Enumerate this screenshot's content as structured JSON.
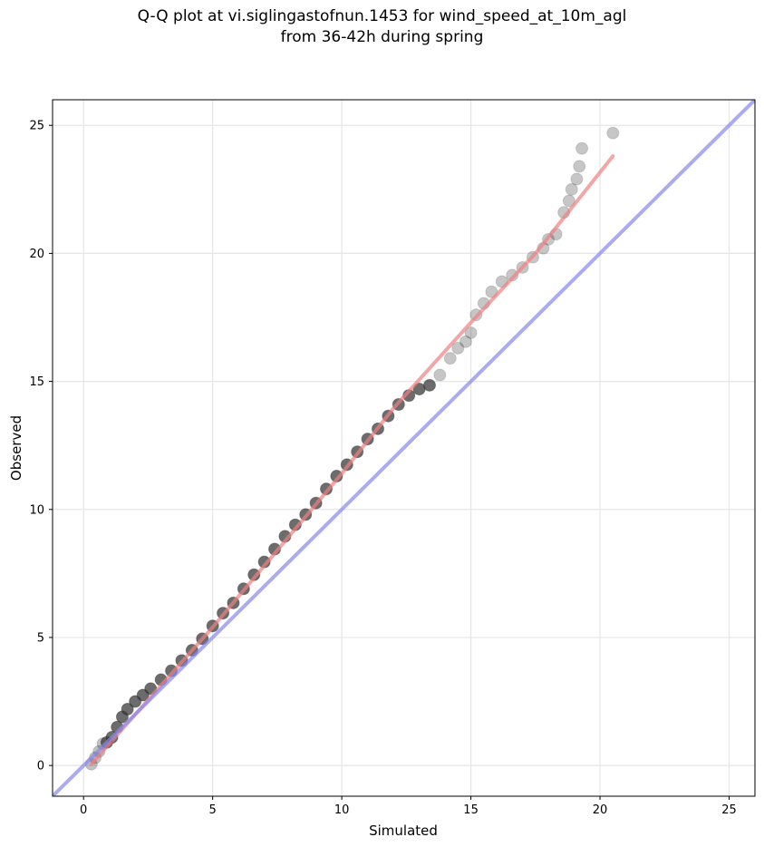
{
  "title_lines": [
    "Q-Q plot at vi.siglingastofnun.1453 for wind_speed_at_10m_agl",
    "from 36-42h during spring"
  ],
  "chart_data": {
    "type": "scatter",
    "title": "Q-Q plot at vi.siglingastofnun.1453 for wind_speed_at_10m_agl from 36-42h during spring",
    "xlabel": "Simulated",
    "ylabel": "Observed",
    "xlim": [
      -1.2,
      26
    ],
    "ylim": [
      -1.2,
      26
    ],
    "xticks": [
      0,
      5,
      10,
      15,
      20,
      25
    ],
    "yticks": [
      0,
      5,
      10,
      15,
      20,
      25
    ],
    "grid": true,
    "legend": "none",
    "series": [
      {
        "type": "scatter",
        "color": "#333333",
        "points": [
          [
            0.3,
            0.05
          ],
          [
            0.45,
            0.3
          ],
          [
            0.6,
            0.55
          ],
          [
            0.75,
            0.85
          ],
          [
            0.9,
            0.9
          ],
          [
            1.1,
            1.1
          ],
          [
            1.3,
            1.5
          ],
          [
            1.5,
            1.9
          ],
          [
            1.7,
            2.2
          ],
          [
            2.0,
            2.5
          ],
          [
            2.3,
            2.75
          ],
          [
            2.6,
            3.0
          ],
          [
            3.0,
            3.35
          ],
          [
            3.4,
            3.7
          ],
          [
            3.8,
            4.1
          ],
          [
            4.2,
            4.5
          ],
          [
            4.6,
            4.95
          ],
          [
            5.0,
            5.45
          ],
          [
            5.4,
            5.95
          ],
          [
            5.8,
            6.35
          ],
          [
            6.2,
            6.9
          ],
          [
            6.6,
            7.45
          ],
          [
            7.0,
            7.95
          ],
          [
            7.4,
            8.45
          ],
          [
            7.8,
            8.95
          ],
          [
            8.2,
            9.4
          ],
          [
            8.6,
            9.8
          ],
          [
            9.0,
            10.25
          ],
          [
            9.4,
            10.8
          ],
          [
            9.8,
            11.3
          ],
          [
            10.2,
            11.75
          ],
          [
            10.6,
            12.25
          ],
          [
            11.0,
            12.75
          ],
          [
            11.4,
            13.15
          ],
          [
            11.8,
            13.65
          ],
          [
            12.2,
            14.1
          ],
          [
            12.6,
            14.45
          ],
          [
            13.0,
            14.7
          ],
          [
            13.4,
            14.85
          ],
          [
            13.8,
            15.25
          ],
          [
            14.2,
            15.9
          ],
          [
            14.5,
            16.3
          ],
          [
            14.8,
            16.55
          ],
          [
            15.0,
            16.9
          ],
          [
            15.2,
            17.6
          ],
          [
            15.5,
            18.05
          ],
          [
            15.8,
            18.5
          ],
          [
            16.2,
            18.9
          ],
          [
            16.6,
            19.15
          ],
          [
            17.0,
            19.45
          ],
          [
            17.4,
            19.85
          ],
          [
            17.8,
            20.2
          ],
          [
            18.0,
            20.55
          ],
          [
            18.3,
            20.75
          ],
          [
            18.6,
            21.6
          ],
          [
            18.8,
            22.05
          ],
          [
            18.9,
            22.5
          ],
          [
            19.1,
            22.9
          ],
          [
            19.2,
            23.4
          ],
          [
            19.3,
            24.1
          ],
          [
            20.5,
            24.7
          ]
        ]
      },
      {
        "type": "line",
        "name": "",
        "color": "#f08080",
        "points": [
          [
            0.3,
            0.05
          ],
          [
            5.0,
            5.4
          ],
          [
            10.0,
            11.4
          ],
          [
            12.0,
            13.95
          ],
          [
            15.0,
            17.3
          ],
          [
            17.5,
            20.0
          ],
          [
            20.5,
            23.8
          ]
        ]
      },
      {
        "type": "line",
        "name": "",
        "color": "#8888ee",
        "points": [
          [
            -1.2,
            -1.2
          ],
          [
            26,
            26
          ]
        ]
      }
    ]
  }
}
